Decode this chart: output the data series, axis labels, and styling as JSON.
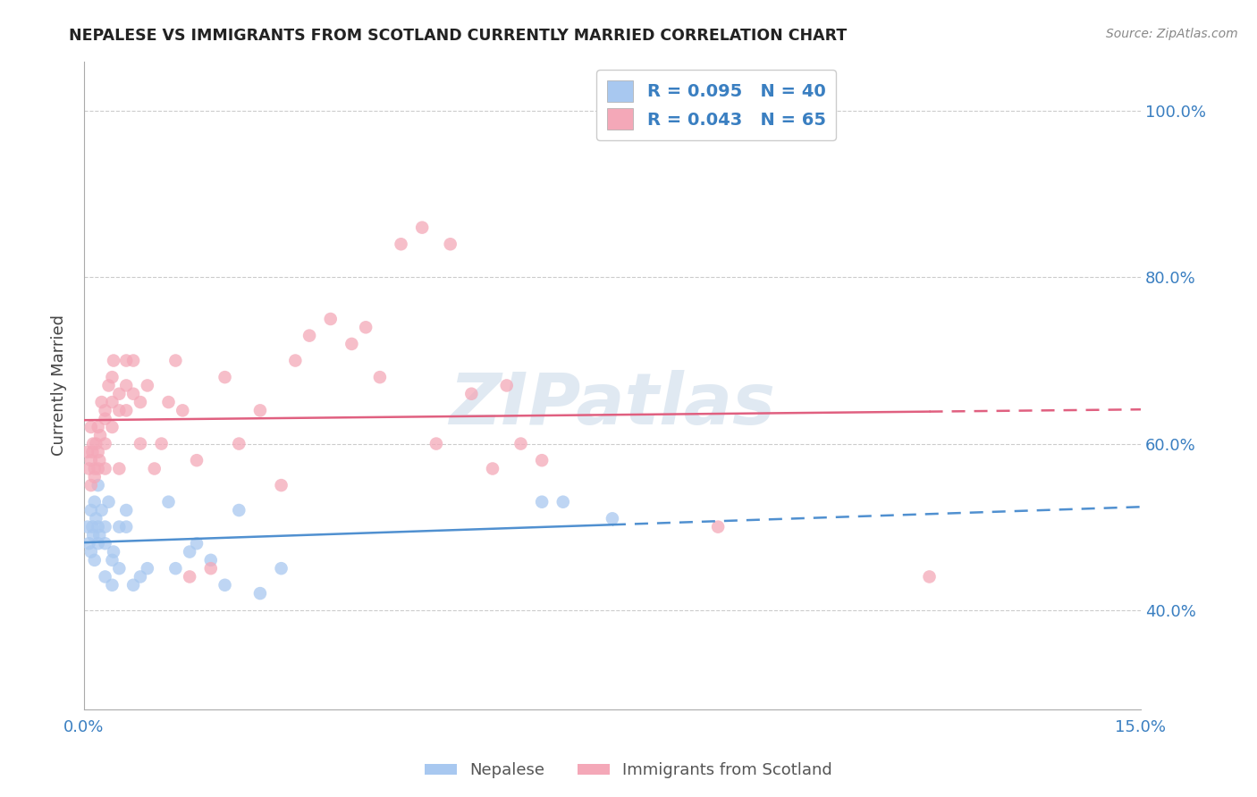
{
  "title": "NEPALESE VS IMMIGRANTS FROM SCOTLAND CURRENTLY MARRIED CORRELATION CHART",
  "source": "Source: ZipAtlas.com",
  "ylabel": "Currently Married",
  "xlim": [
    0.0,
    0.15
  ],
  "ylim": [
    0.28,
    1.06
  ],
  "watermark": "ZIPatlas",
  "nepalese_x": [
    0.0005,
    0.0007,
    0.001,
    0.001,
    0.0012,
    0.0013,
    0.0015,
    0.0015,
    0.0017,
    0.002,
    0.002,
    0.002,
    0.0022,
    0.0025,
    0.003,
    0.003,
    0.003,
    0.0035,
    0.004,
    0.004,
    0.0042,
    0.005,
    0.005,
    0.006,
    0.006,
    0.007,
    0.008,
    0.009,
    0.012,
    0.013,
    0.015,
    0.016,
    0.018,
    0.02,
    0.022,
    0.025,
    0.028,
    0.065,
    0.068,
    0.075
  ],
  "nepalese_y": [
    0.5,
    0.48,
    0.52,
    0.47,
    0.5,
    0.49,
    0.46,
    0.53,
    0.51,
    0.55,
    0.5,
    0.48,
    0.49,
    0.52,
    0.48,
    0.44,
    0.5,
    0.53,
    0.43,
    0.46,
    0.47,
    0.45,
    0.5,
    0.5,
    0.52,
    0.43,
    0.44,
    0.45,
    0.53,
    0.45,
    0.47,
    0.48,
    0.46,
    0.43,
    0.52,
    0.42,
    0.45,
    0.53,
    0.53,
    0.51
  ],
  "scotland_x": [
    0.0005,
    0.0007,
    0.001,
    0.001,
    0.001,
    0.0012,
    0.0013,
    0.0015,
    0.0015,
    0.0017,
    0.002,
    0.002,
    0.002,
    0.0022,
    0.0023,
    0.0025,
    0.003,
    0.003,
    0.003,
    0.003,
    0.0035,
    0.004,
    0.004,
    0.004,
    0.0042,
    0.005,
    0.005,
    0.005,
    0.006,
    0.006,
    0.006,
    0.007,
    0.007,
    0.008,
    0.008,
    0.009,
    0.01,
    0.011,
    0.012,
    0.013,
    0.014,
    0.015,
    0.016,
    0.018,
    0.02,
    0.022,
    0.025,
    0.028,
    0.03,
    0.032,
    0.035,
    0.038,
    0.04,
    0.042,
    0.045,
    0.048,
    0.05,
    0.052,
    0.055,
    0.058,
    0.06,
    0.062,
    0.065,
    0.09,
    0.12
  ],
  "scotland_y": [
    0.59,
    0.57,
    0.55,
    0.58,
    0.62,
    0.59,
    0.6,
    0.57,
    0.56,
    0.6,
    0.57,
    0.59,
    0.62,
    0.58,
    0.61,
    0.65,
    0.6,
    0.63,
    0.57,
    0.64,
    0.67,
    0.65,
    0.68,
    0.62,
    0.7,
    0.64,
    0.66,
    0.57,
    0.67,
    0.7,
    0.64,
    0.7,
    0.66,
    0.6,
    0.65,
    0.67,
    0.57,
    0.6,
    0.65,
    0.7,
    0.64,
    0.44,
    0.58,
    0.45,
    0.68,
    0.6,
    0.64,
    0.55,
    0.7,
    0.73,
    0.75,
    0.72,
    0.74,
    0.68,
    0.84,
    0.86,
    0.6,
    0.84,
    0.66,
    0.57,
    0.67,
    0.6,
    0.58,
    0.5,
    0.44
  ],
  "nepalese_color": "#a8c8f0",
  "scotland_color": "#f4a8b8",
  "nepalese_line_color": "#5090d0",
  "scotland_line_color": "#e06080",
  "background_color": "#ffffff",
  "grid_color": "#cccccc",
  "nepalese_R": 0.095,
  "nepalese_N": 40,
  "scotland_R": 0.043,
  "scotland_N": 65
}
